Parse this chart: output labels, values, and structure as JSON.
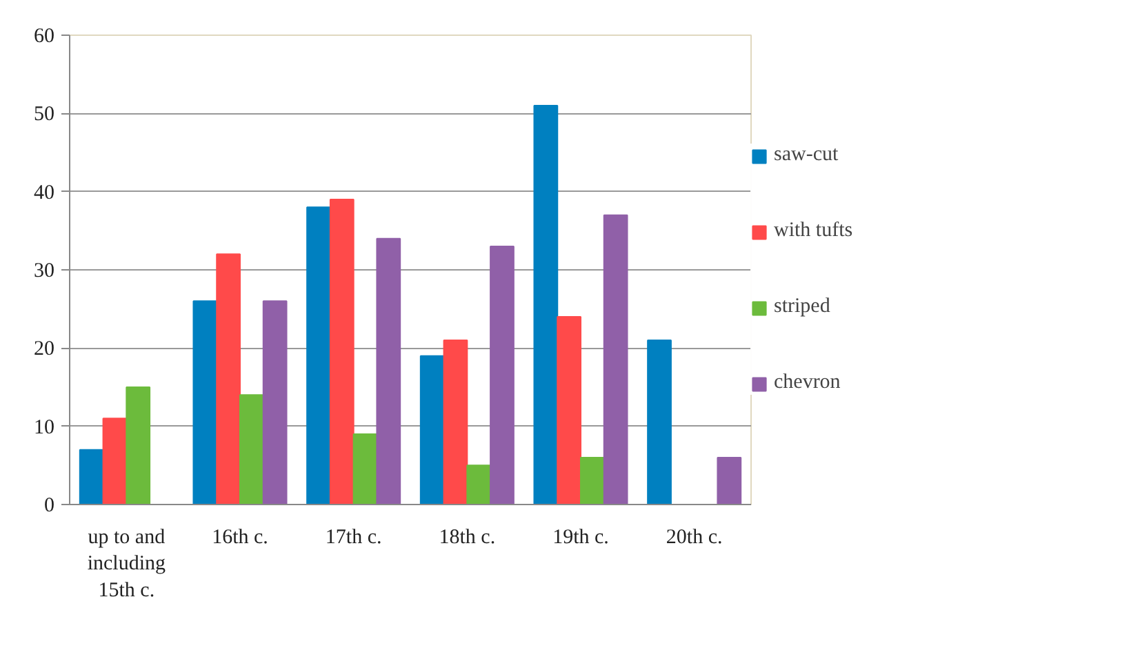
{
  "chart_data": {
    "type": "bar",
    "categories": [
      "up to and including 15th c.",
      "16th c.",
      "17th c.",
      "18th c.",
      "19th c.",
      "20th c."
    ],
    "series": [
      {
        "name": "saw-cut",
        "color": "#0080c0",
        "values": [
          7,
          26,
          38,
          19,
          51,
          21
        ]
      },
      {
        "name": "with tufts",
        "color": "#ff4a4a",
        "values": [
          11,
          32,
          39,
          21,
          24,
          null
        ]
      },
      {
        "name": "striped",
        "color": "#6cbb3c",
        "values": [
          15,
          14,
          9,
          5,
          6,
          null
        ]
      },
      {
        "name": "chevron",
        "color": "#9060a8",
        "values": [
          null,
          26,
          34,
          33,
          37,
          6
        ]
      }
    ],
    "ylim": [
      0,
      60
    ],
    "yticks": [
      0,
      10,
      20,
      30,
      40,
      50,
      60
    ],
    "grid": "y",
    "legend": "right"
  }
}
